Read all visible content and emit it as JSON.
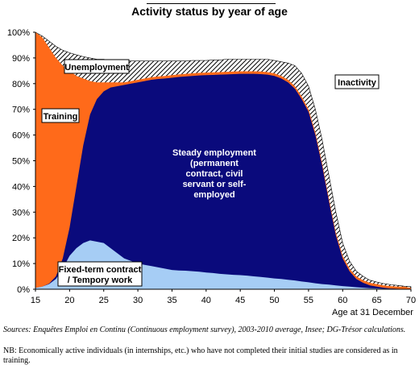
{
  "chart_data": {
    "type": "area",
    "title": "Activity status by year of age",
    "xlabel": "Age at 31 December",
    "ylabel": "",
    "xlim": [
      15,
      70
    ],
    "ylim": [
      0,
      100
    ],
    "x_ticks": [
      15,
      20,
      25,
      30,
      35,
      40,
      45,
      50,
      55,
      60,
      65,
      70
    ],
    "y_ticks": [
      "0%",
      "10%",
      "20%",
      "30%",
      "40%",
      "50%",
      "60%",
      "70%",
      "80%",
      "90%",
      "100%"
    ],
    "x": [
      15,
      16,
      17,
      18,
      19,
      20,
      21,
      22,
      23,
      24,
      25,
      26,
      27,
      28,
      29,
      30,
      31,
      32,
      33,
      34,
      35,
      36,
      37,
      38,
      39,
      40,
      41,
      42,
      43,
      44,
      45,
      46,
      47,
      48,
      49,
      50,
      51,
      52,
      53,
      54,
      55,
      56,
      57,
      58,
      59,
      60,
      61,
      62,
      63,
      64,
      65,
      66,
      67,
      68,
      69,
      70
    ],
    "cumulative": {
      "fixed_term": [
        0.5,
        1,
        2,
        4,
        8,
        13,
        16,
        18,
        19,
        18.5,
        18,
        16,
        14,
        12,
        11,
        10,
        9.5,
        9,
        8.5,
        8,
        7.5,
        7.3,
        7.2,
        7,
        6.8,
        6.5,
        6.3,
        6,
        5.8,
        5.6,
        5.5,
        5.3,
        5,
        4.8,
        4.5,
        4.2,
        4,
        3.7,
        3.4,
        3,
        2.7,
        2.3,
        2,
        1.8,
        1.5,
        1.2,
        1,
        0.8,
        0.6,
        0.4,
        0.3,
        0.2,
        0.2,
        0.1,
        0.1,
        0.1
      ],
      "steady": [
        0.5,
        1,
        2.2,
        5,
        12,
        24,
        40,
        56,
        68,
        74,
        77,
        78.5,
        79,
        79.5,
        80,
        80.5,
        81,
        81.5,
        81.8,
        82,
        82.3,
        82.6,
        82.8,
        83,
        83.2,
        83.3,
        83.4,
        83.5,
        83.6,
        83.7,
        83.8,
        83.8,
        83.8,
        83.7,
        83.5,
        83,
        82,
        80.5,
        78,
        74,
        69,
        60,
        48,
        34,
        21,
        12,
        7,
        4,
        2.5,
        1.5,
        1,
        0.6,
        0.3,
        0.2,
        0.1,
        0.1
      ],
      "training": [
        100,
        98,
        94,
        90,
        87,
        85,
        83,
        82,
        81,
        80.5,
        80.5,
        80.5,
        80.5,
        80.5,
        81,
        81.5,
        82,
        82.5,
        82.8,
        83,
        83.3,
        83.6,
        83.8,
        84,
        84.2,
        84.3,
        84.4,
        84.5,
        84.6,
        84.7,
        84.8,
        84.8,
        84.8,
        84.7,
        84.5,
        84,
        83,
        81.5,
        79,
        75,
        70,
        61,
        49,
        35,
        22,
        13,
        8,
        5,
        3.5,
        2.5,
        2,
        1.5,
        1.2,
        1,
        1,
        0.5
      ],
      "unemployment": [
        100,
        98.5,
        96.5,
        94.5,
        93,
        92,
        91.2,
        90.5,
        90,
        89.5,
        89.5,
        89,
        88.8,
        88.8,
        88.8,
        88.8,
        88.8,
        88.8,
        88.8,
        88.8,
        88.8,
        88.8,
        88.8,
        89,
        89,
        89,
        89.2,
        89.2,
        89.5,
        89.5,
        89.5,
        89.5,
        89.5,
        89.5,
        89.5,
        89,
        88.5,
        88,
        87,
        84,
        79,
        70,
        58,
        44,
        30,
        18,
        11,
        7,
        5,
        3.5,
        2.8,
        2.2,
        1.8,
        1.5,
        1.2,
        1
      ]
    },
    "series": [
      {
        "name": "Fixed-term contract / Tempory work",
        "color": "#a6cdf5"
      },
      {
        "name": "Steady employment (permanent contract, civil servant or self-employed",
        "color": "#0a0a7c"
      },
      {
        "name": "Training",
        "color": "#ff6a1a"
      },
      {
        "name": "Unemployment",
        "color": "hatched"
      },
      {
        "name": "Inactivity",
        "color": "#ffffff"
      }
    ]
  },
  "labels": {
    "unemployment": "Unemployment",
    "training": "Training",
    "inactivity": "Inactivity",
    "steady": [
      "Steady employment",
      "(permanent",
      "contract, civil",
      "servant or self-",
      "employed"
    ],
    "fixed_term": [
      "Fixed-term contract",
      "/ Tempory work"
    ]
  },
  "footnotes": {
    "sources_prefix": "Sources: ",
    "sources_text": "Enquêtes Emploi en Continu (Continuous employment survey), 2003-2010 average, Insee; DG-Trésor calculations.",
    "nb": "NB: Economically active individuals (in internships, etc.) who have not completed their initial studies are considered as in training."
  }
}
